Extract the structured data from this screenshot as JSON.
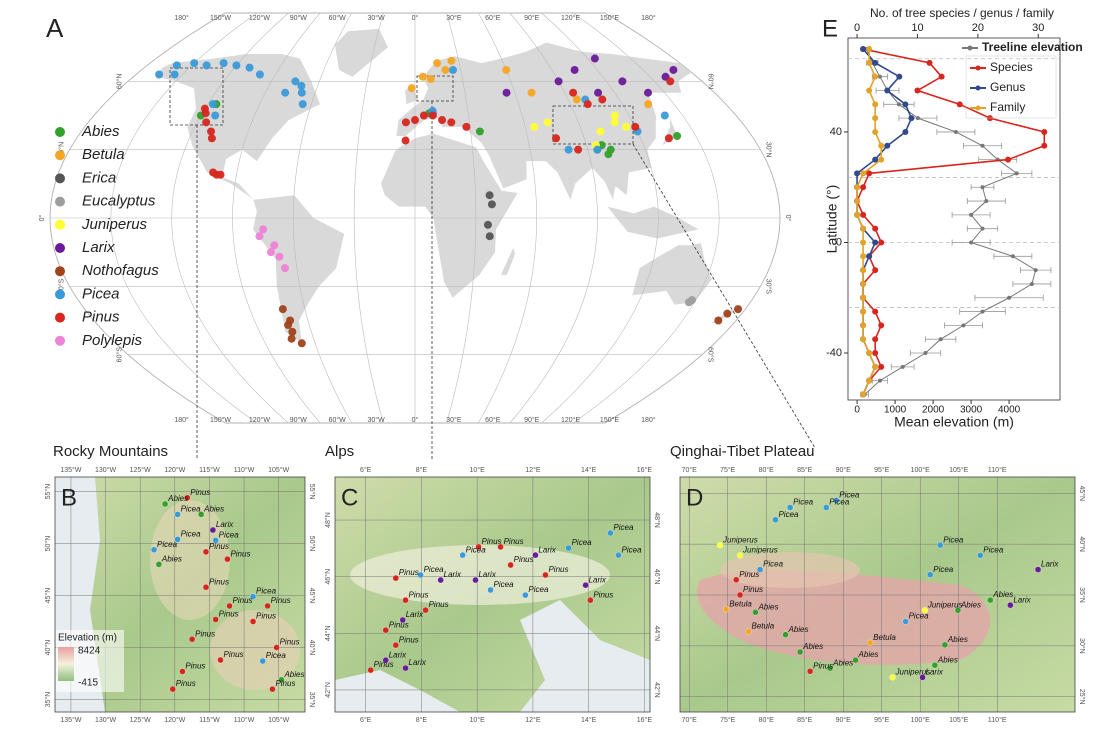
{
  "panel_a": {
    "label": "A",
    "lon_ticks": [
      {
        "value": -180,
        "label": "180°"
      },
      {
        "value": -150,
        "label": "150°W"
      },
      {
        "value": -120,
        "label": "120°W"
      },
      {
        "value": -90,
        "label": "90°W"
      },
      {
        "value": -60,
        "label": "60°W"
      },
      {
        "value": -30,
        "label": "30°W"
      },
      {
        "value": 0,
        "label": "0°"
      },
      {
        "value": 30,
        "label": "30°E"
      },
      {
        "value": 60,
        "label": "60°E"
      },
      {
        "value": 90,
        "label": "90°E"
      },
      {
        "value": 120,
        "label": "120°E"
      },
      {
        "value": 150,
        "label": "150°E"
      },
      {
        "value": 180,
        "label": "180°"
      }
    ],
    "lat_ticks": [
      {
        "value": 60,
        "label": "60°N"
      },
      {
        "value": 30,
        "label": "30°N"
      },
      {
        "value": 0,
        "label": "0°"
      },
      {
        "value": -30,
        "label": "30°S"
      },
      {
        "value": -60,
        "label": "60°S"
      }
    ],
    "series": [
      {
        "name": "Abies",
        "color": "#33a02c",
        "lon": [
          -115,
          -120,
          8,
          95,
          100,
          102,
          98,
          35,
          140
        ],
        "lat": [
          50,
          45,
          46,
          30,
          28,
          30,
          32,
          38,
          36
        ]
      },
      {
        "name": "Betula",
        "color": "#f5a623",
        "lon": [
          5,
          15,
          25,
          10,
          70,
          95,
          20,
          60,
          -2,
          135
        ],
        "lat": [
          62,
          68,
          69,
          61,
          55,
          52,
          65,
          65,
          57,
          50
        ]
      },
      {
        "name": "Erica",
        "color": "#555555",
        "lon": [
          37,
          38,
          36,
          37
        ],
        "lat": [
          10,
          6,
          -3,
          -8
        ]
      },
      {
        "name": "Eucalyptus",
        "color": "#9e9e9e",
        "lon": [
          148,
          147
        ],
        "lat": [
          -36,
          -37
        ]
      },
      {
        "name": "Juniperus",
        "color": "#ffff33",
        "lon": [
          110,
          115,
          100,
          73,
          65,
          95,
          112
        ],
        "lat": [
          42,
          40,
          38,
          42,
          40,
          32,
          45
        ]
      },
      {
        "name": "Larix",
        "color": "#6a1b9a",
        "lon": [
          160,
          90,
          110,
          130,
          140,
          170,
          105,
          55,
          10,
          125
        ],
        "lat": [
          62,
          60,
          55,
          60,
          55,
          65,
          65,
          55,
          46,
          70
        ]
      },
      {
        "name": "Nothofagus",
        "color": "#a0421a",
        "lon": [
          -72,
          -70,
          -71,
          -73,
          -68,
          -72,
          172,
          176,
          170
        ],
        "lat": [
          -40,
          -45,
          -50,
          -53,
          -55,
          -47,
          -42,
          -40,
          -45
        ]
      },
      {
        "name": "Picea",
        "color": "#3a9ad9",
        "lon": [
          -160,
          -150,
          -140,
          -130,
          -120,
          -110,
          -100,
          -155,
          -165,
          -75,
          -70,
          -68,
          -78,
          -65,
          -117,
          -112,
          10,
          25,
          100,
          95,
          140,
          80,
          120
        ],
        "lat": [
          67,
          68,
          67,
          68,
          67,
          66,
          63,
          63,
          63,
          60,
          58,
          55,
          55,
          50,
          50,
          45,
          47,
          65,
          52,
          30,
          45,
          30,
          38
        ]
      },
      {
        "name": "Pinus",
        "color": "#d7261e",
        "lon": [
          -115,
          -118,
          -110,
          -108,
          -120,
          -100,
          -102,
          -98,
          5,
          -5,
          10,
          15,
          20,
          0,
          -5,
          95,
          100,
          110,
          75,
          85,
          120,
          160,
          28,
          135
        ],
        "lat": [
          42,
          46,
          38,
          35,
          48,
          19,
          20,
          19,
          45,
          42,
          45,
          43,
          42,
          43,
          34,
          55,
          50,
          52,
          35,
          30,
          40,
          60,
          40,
          35
        ]
      },
      {
        "name": "Polylepis",
        "color": "#ee82d6",
        "lon": [
          -75,
          -77,
          -72,
          -68,
          -66,
          -70
        ],
        "lat": [
          -5,
          -8,
          -15,
          -17,
          -22,
          -12
        ]
      }
    ]
  },
  "panel_b": {
    "label": "B",
    "title": "Rocky Mountains",
    "lonlim": [
      -137.3,
      -101.2
    ],
    "latlim": [
      33.8,
      56.4
    ],
    "lon_ticks": [
      {
        "value": -135,
        "label": "135°W"
      },
      {
        "value": -130,
        "label": "130°W"
      },
      {
        "value": -125,
        "label": "125°W"
      },
      {
        "value": -120,
        "label": "120°W"
      },
      {
        "value": -115,
        "label": "115°W"
      },
      {
        "value": -110,
        "label": "110°W"
      },
      {
        "value": -105,
        "label": "105°W"
      }
    ],
    "lat_ticks": [
      {
        "value": 55,
        "label": "55°N"
      },
      {
        "value": 50,
        "label": "50°N"
      },
      {
        "value": 45,
        "label": "45°N"
      },
      {
        "value": 40,
        "label": "40°N"
      },
      {
        "value": 35,
        "label": "35°N"
      }
    ],
    "elevation_legend": {
      "title": "Elevation (m)",
      "max": 8424,
      "min": -415
    },
    "points": [
      {
        "label": "Pinus",
        "lon": -118.2,
        "lat": 54.4
      },
      {
        "label": "Abies",
        "lon": -121.4,
        "lat": 53.8
      },
      {
        "label": "Picea",
        "lon": -119.6,
        "lat": 52.8
      },
      {
        "label": "Abies",
        "lon": -116.2,
        "lat": 52.8
      },
      {
        "label": "Larix",
        "lon": -114.5,
        "lat": 51.3
      },
      {
        "label": "Picea",
        "lon": -119.6,
        "lat": 50.4
      },
      {
        "label": "Picea",
        "lon": -114.1,
        "lat": 50.3
      },
      {
        "label": "Picea",
        "lon": -123.0,
        "lat": 49.4
      },
      {
        "label": "Pinus",
        "lon": -115.5,
        "lat": 49.2
      },
      {
        "label": "Abies",
        "lon": -122.3,
        "lat": 48.0
      },
      {
        "label": "Pinus",
        "lon": -112.4,
        "lat": 48.5
      },
      {
        "label": "Pinus",
        "lon": -115.5,
        "lat": 45.8
      },
      {
        "label": "Picea",
        "lon": -108.7,
        "lat": 44.9
      },
      {
        "label": "Pinus",
        "lon": -112.1,
        "lat": 44.0
      },
      {
        "label": "Pinus",
        "lon": -106.6,
        "lat": 44.0
      },
      {
        "label": "Pinus",
        "lon": -114.1,
        "lat": 42.7
      },
      {
        "label": "Pinus",
        "lon": -117.5,
        "lat": 40.8
      },
      {
        "label": "Pinus",
        "lon": -108.7,
        "lat": 42.5
      },
      {
        "label": "Pinus",
        "lon": -105.3,
        "lat": 40.0
      },
      {
        "label": "Pinus",
        "lon": -113.4,
        "lat": 38.8
      },
      {
        "label": "Picea",
        "lon": -107.3,
        "lat": 38.7
      },
      {
        "label": "Pinus",
        "lon": -118.9,
        "lat": 37.7
      },
      {
        "label": "Abies",
        "lon": -104.6,
        "lat": 36.9
      },
      {
        "label": "Pinus",
        "lon": -120.3,
        "lat": 36.0
      },
      {
        "label": "Pinus",
        "lon": -105.9,
        "lat": 36.0
      }
    ]
  },
  "panel_c": {
    "label": "C",
    "title": "Alps",
    "lonlim": [
      4.9,
      16.2
    ],
    "latlim": [
      41.22,
      49.52
    ],
    "lon_ticks": [
      {
        "value": 6,
        "label": "6°E"
      },
      {
        "value": 8,
        "label": "8°E"
      },
      {
        "value": 10,
        "label": "10°E"
      },
      {
        "value": 12,
        "label": "12°E"
      },
      {
        "value": 14,
        "label": "14°E"
      },
      {
        "value": 16,
        "label": "16°E"
      }
    ],
    "lat_ticks": [
      {
        "value": 48,
        "label": "48°N"
      },
      {
        "value": 46,
        "label": "46°N"
      },
      {
        "value": 44,
        "label": "44°N"
      },
      {
        "value": 42,
        "label": "42°N"
      }
    ],
    "points": [
      {
        "label": "Pinus",
        "lon": 10.05,
        "lat": 47.05
      },
      {
        "label": "Pinus",
        "lon": 10.84,
        "lat": 47.05
      },
      {
        "label": "Picea",
        "lon": 9.48,
        "lat": 46.76
      },
      {
        "label": "Larix",
        "lon": 12.09,
        "lat": 46.76
      },
      {
        "label": "Picea",
        "lon": 13.28,
        "lat": 47.01
      },
      {
        "label": "Picea",
        "lon": 14.78,
        "lat": 47.54
      },
      {
        "label": "Picea",
        "lon": 15.07,
        "lat": 46.76
      },
      {
        "label": "Pinus",
        "lon": 11.2,
        "lat": 46.41
      },
      {
        "label": "Pinus",
        "lon": 12.45,
        "lat": 46.06
      },
      {
        "label": "Picea",
        "lon": 7.97,
        "lat": 46.06
      },
      {
        "label": "Larix",
        "lon": 8.69,
        "lat": 45.88
      },
      {
        "label": "Pinus",
        "lon": 7.08,
        "lat": 45.95
      },
      {
        "label": "Larix",
        "lon": 9.94,
        "lat": 45.88
      },
      {
        "label": "Picea",
        "lon": 10.48,
        "lat": 45.53
      },
      {
        "label": "Pinus",
        "lon": 7.43,
        "lat": 45.17
      },
      {
        "label": "Larix",
        "lon": 7.33,
        "lat": 44.47
      },
      {
        "label": "Pinus",
        "lon": 6.72,
        "lat": 44.11
      },
      {
        "label": "Pinus",
        "lon": 7.08,
        "lat": 43.58
      },
      {
        "label": "Larix",
        "lon": 6.72,
        "lat": 43.05
      },
      {
        "label": "Pinus",
        "lon": 6.18,
        "lat": 42.7
      },
      {
        "label": "Larix",
        "lon": 7.43,
        "lat": 42.77
      },
      {
        "label": "Pinus",
        "lon": 8.15,
        "lat": 44.82
      },
      {
        "label": "Larix",
        "lon": 13.89,
        "lat": 45.7
      },
      {
        "label": "Picea",
        "lon": 11.73,
        "lat": 45.35
      },
      {
        "label": "Pinus",
        "lon": 14.06,
        "lat": 45.17
      }
    ]
  },
  "panel_d": {
    "label": "D",
    "title": "Qinghai-Tibet Plateau",
    "lonlim": [
      68.8,
      120.1
    ],
    "latlim": [
      23.5,
      46.6
    ],
    "lon_ticks": [
      {
        "value": 70,
        "label": "70°E"
      },
      {
        "value": 75,
        "label": "75°E"
      },
      {
        "value": 80,
        "label": "80°E"
      },
      {
        "value": 85,
        "label": "85°E"
      },
      {
        "value": 90,
        "label": "90°E"
      },
      {
        "value": 95,
        "label": "95°E"
      },
      {
        "value": 100,
        "label": "100°E"
      },
      {
        "value": 105,
        "label": "105°E"
      },
      {
        "value": 110,
        "label": "110°E"
      }
    ],
    "lat_ticks": [
      {
        "value": 45,
        "label": "45°N"
      },
      {
        "value": 40,
        "label": "40°N"
      },
      {
        "value": 35,
        "label": "35°N"
      },
      {
        "value": 30,
        "label": "30°N"
      },
      {
        "value": 25,
        "label": "25°N"
      }
    ],
    "points": [
      {
        "label": "Picea",
        "lon": 89.1,
        "lat": 44.3
      },
      {
        "label": "Picea",
        "lon": 83.1,
        "lat": 43.6
      },
      {
        "label": "Picea",
        "lon": 87.8,
        "lat": 43.6
      },
      {
        "label": "Picea",
        "lon": 81.2,
        "lat": 42.4
      },
      {
        "label": "Juniperus",
        "lon": 74.0,
        "lat": 39.9
      },
      {
        "label": "Juniperus",
        "lon": 76.6,
        "lat": 38.9
      },
      {
        "label": "Picea",
        "lon": 79.2,
        "lat": 37.5
      },
      {
        "label": "Pinus",
        "lon": 76.1,
        "lat": 36.5
      },
      {
        "label": "Pinus",
        "lon": 76.6,
        "lat": 35.0
      },
      {
        "label": "Betula",
        "lon": 74.8,
        "lat": 33.6
      },
      {
        "label": "Abies",
        "lon": 78.6,
        "lat": 33.3
      },
      {
        "label": "Abies",
        "lon": 82.5,
        "lat": 31.1
      },
      {
        "label": "Betula",
        "lon": 77.7,
        "lat": 31.4
      },
      {
        "label": "Abies",
        "lon": 84.4,
        "lat": 29.4
      },
      {
        "label": "Abies",
        "lon": 88.3,
        "lat": 27.8
      },
      {
        "label": "Pinus",
        "lon": 85.7,
        "lat": 27.5
      },
      {
        "label": "Abies",
        "lon": 91.6,
        "lat": 28.6
      },
      {
        "label": "Betula",
        "lon": 93.5,
        "lat": 30.3
      },
      {
        "label": "Picea",
        "lon": 98.1,
        "lat": 32.4
      },
      {
        "label": "Juniperus",
        "lon": 96.4,
        "lat": 26.9
      },
      {
        "label": "Larix",
        "lon": 100.3,
        "lat": 26.9
      },
      {
        "label": "Picea",
        "lon": 102.6,
        "lat": 39.9
      },
      {
        "label": "Picea",
        "lon": 107.8,
        "lat": 38.9
      },
      {
        "label": "Picea",
        "lon": 101.3,
        "lat": 37.0
      },
      {
        "label": "Abies",
        "lon": 104.9,
        "lat": 33.5
      },
      {
        "label": "Abies",
        "lon": 109.1,
        "lat": 34.5
      },
      {
        "label": "Larix",
        "lon": 111.7,
        "lat": 34.0
      },
      {
        "label": "Abies",
        "lon": 103.2,
        "lat": 30.1
      },
      {
        "label": "Juniperus",
        "lon": 100.6,
        "lat": 33.5
      },
      {
        "label": "Abies",
        "lon": 101.9,
        "lat": 28.1
      },
      {
        "label": "Larix",
        "lon": 115.3,
        "lat": 37.5
      }
    ]
  },
  "chart_data": {
    "type": "line",
    "label": "E",
    "x2_label": "No. of tree species / genus / family",
    "x_label": "Mean elevation (m)",
    "y_label": "Latitude (°)",
    "y": [
      70,
      65,
      60,
      55,
      50,
      45,
      40,
      35,
      30,
      25,
      20,
      15,
      10,
      5,
      0,
      -5,
      -10,
      -15,
      -20,
      -25,
      -30,
      -35,
      -40,
      -45,
      -50,
      -55
    ],
    "ylim": [
      -57,
      74
    ],
    "yticks": [
      -40,
      0,
      40
    ],
    "xlim": [
      -240,
      5340
    ],
    "xticks": [
      0,
      1000,
      2000,
      3000,
      4000
    ],
    "x2lim": [
      -1.5,
      33.6
    ],
    "x2ticks": [
      0,
      10,
      20,
      30
    ],
    "reference_lines": [
      66.5,
      23.5,
      0,
      -23.5
    ],
    "legend": "top-right",
    "series": [
      {
        "name": "Treeline elevation",
        "color": "#777777",
        "axis": "x",
        "values": [
          250,
          400,
          600,
          800,
          1100,
          1600,
          2600,
          3300,
          3700,
          4200,
          3300,
          3400,
          3000,
          3300,
          3000,
          4100,
          4700,
          4600,
          4000,
          3300,
          2800,
          2200,
          1800,
          1200,
          600,
          200
        ],
        "errors": [
          100,
          150,
          200,
          300,
          400,
          500,
          500,
          500,
          500,
          400,
          300,
          500,
          500,
          400,
          500,
          500,
          400,
          500,
          900,
          600,
          500,
          400,
          400,
          300,
          200,
          100
        ]
      },
      {
        "name": "Species",
        "color": "#d7261e",
        "axis": "x2",
        "values": [
          1,
          12,
          14,
          10,
          17,
          22,
          31,
          31,
          25,
          2,
          1,
          0,
          1,
          3,
          4,
          2,
          3,
          1,
          1,
          3,
          4,
          3,
          3,
          4,
          2,
          1
        ]
      },
      {
        "name": "Genus",
        "color": "#2f4b8c",
        "axis": "x2",
        "values": [
          1,
          3,
          7,
          5,
          8,
          9,
          8,
          5,
          3,
          0,
          0,
          0,
          0,
          1,
          3,
          2,
          1,
          1,
          1,
          1,
          1,
          1,
          2,
          3,
          2,
          1
        ]
      },
      {
        "name": "Family",
        "color": "#e3a32a",
        "axis": "x2",
        "values": [
          2,
          2,
          3,
          2,
          3,
          3,
          3,
          4,
          4,
          1,
          0,
          0,
          0,
          1,
          1,
          1,
          1,
          1,
          1,
          1,
          1,
          1,
          2,
          3,
          2,
          1
        ]
      }
    ]
  }
}
